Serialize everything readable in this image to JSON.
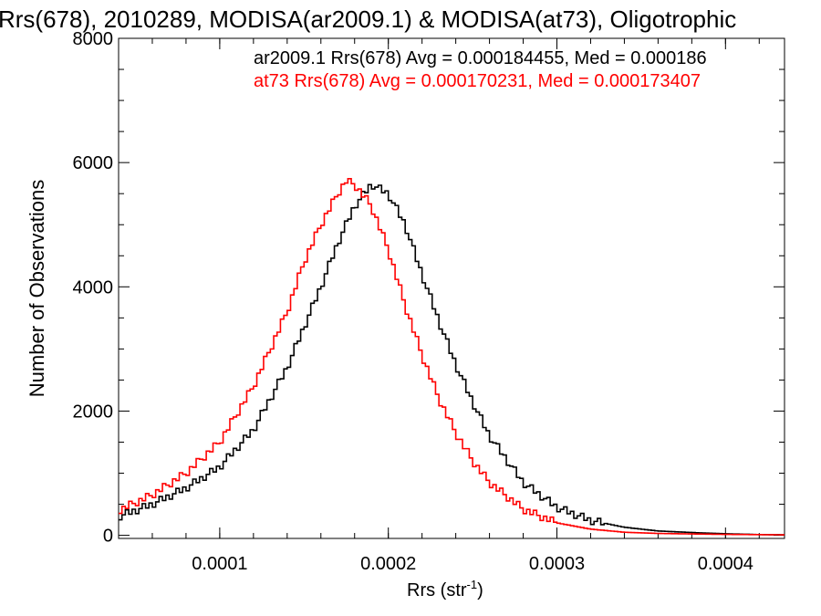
{
  "chart_data": {
    "type": "line",
    "title": "Rrs(678), 2010289, MODISA(ar2009.1) & MODISA(at73), Oligotrophic",
    "xlabel": "Rrs (str",
    "xlabel_sup": "-1",
    "xlabel_end": ")",
    "ylabel": "Number of Observations",
    "xlim": [
      4e-05,
      0.000435
    ],
    "ylim": [
      -50,
      8000
    ],
    "x_ticks": [
      0.0001,
      0.0002,
      0.0003,
      0.0004
    ],
    "x_tick_labels": [
      "0.0001",
      "0.0002",
      "0.0003",
      "0.0004"
    ],
    "y_ticks": [
      0,
      2000,
      4000,
      6000,
      8000
    ],
    "y_tick_labels": [
      "0",
      "2000",
      "4000",
      "6000",
      "8000"
    ],
    "grid": false,
    "legend_placement": "top-right",
    "series": [
      {
        "name": "ar2009.1",
        "color": "#000000",
        "annotation": "ar2009.1 Rrs(678) Avg = 0.000184455, Med = 0.000186",
        "points": [
          [
            4e-05,
            300
          ],
          [
            6e-05,
            500
          ],
          [
            8e-05,
            760
          ],
          [
            0.0001,
            1100
          ],
          [
            0.00012,
            1700
          ],
          [
            0.00014,
            2700
          ],
          [
            0.00016,
            4000
          ],
          [
            0.00017,
            4700
          ],
          [
            0.00018,
            5300
          ],
          [
            0.00019,
            5650
          ],
          [
            0.0002,
            5500
          ],
          [
            0.00021,
            5000
          ],
          [
            0.00022,
            4200
          ],
          [
            0.00023,
            3450
          ],
          [
            0.00024,
            2750
          ],
          [
            0.00025,
            2150
          ],
          [
            0.00026,
            1600
          ],
          [
            0.00028,
            850
          ],
          [
            0.0003,
            450
          ],
          [
            0.00032,
            240
          ],
          [
            0.00034,
            130
          ],
          [
            0.00036,
            70
          ],
          [
            0.00038,
            45
          ],
          [
            0.0004,
            25
          ],
          [
            0.00042,
            12
          ],
          [
            0.000435,
            8
          ]
        ]
      },
      {
        "name": "at73",
        "color": "#ff0000",
        "annotation": "at73 Rrs(678) Avg = 0.000170231, Med = 0.000173407",
        "points": [
          [
            4e-05,
            400
          ],
          [
            6e-05,
            650
          ],
          [
            8e-05,
            1000
          ],
          [
            0.0001,
            1500
          ],
          [
            0.00012,
            2400
          ],
          [
            0.00014,
            3600
          ],
          [
            0.00015,
            4400
          ],
          [
            0.00016,
            5000
          ],
          [
            0.00017,
            5500
          ],
          [
            0.000175,
            5700
          ],
          [
            0.00018,
            5650
          ],
          [
            0.00019,
            5300
          ],
          [
            0.0002,
            4600
          ],
          [
            0.00021,
            3700
          ],
          [
            0.00022,
            2900
          ],
          [
            0.00023,
            2200
          ],
          [
            0.00024,
            1650
          ],
          [
            0.00025,
            1200
          ],
          [
            0.00026,
            850
          ],
          [
            0.00028,
            420
          ],
          [
            0.0003,
            200
          ],
          [
            0.00032,
            100
          ],
          [
            0.00034,
            50
          ],
          [
            0.00036,
            30
          ],
          [
            0.0004,
            15
          ],
          [
            0.000435,
            8
          ]
        ]
      }
    ]
  }
}
